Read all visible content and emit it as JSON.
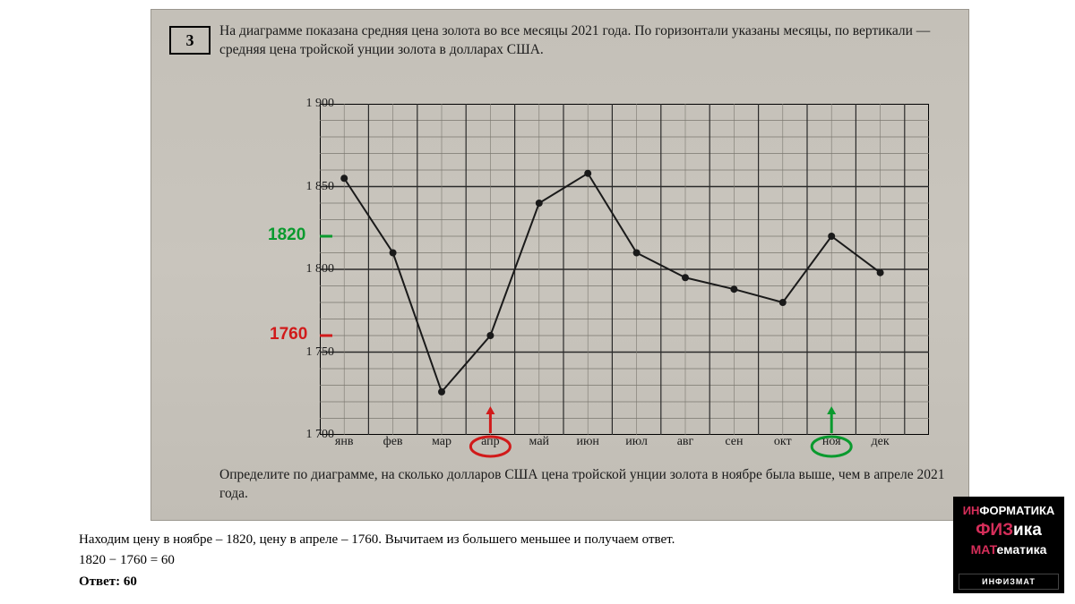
{
  "task_number": "3",
  "task_text": "На диаграмме показана средняя цена золота во все месяцы 2021 года. По горизонтали указаны месяцы, по вертикали — средняя цена тройской унции золота в долларах США.",
  "question_text": "Определите по диаграмме, на сколько долларов США цена тройской унции золота в ноябре была выше, чем в апреле 2021 года.",
  "chart": {
    "type": "line",
    "ylim": [
      1700,
      1900
    ],
    "ytick_step": 50,
    "ytick_labels": [
      "1 700",
      "1 750",
      "1 800",
      "1 850",
      "1 900"
    ],
    "ytick_values": [
      1700,
      1750,
      1800,
      1850,
      1900
    ],
    "y_minor_step": 10,
    "x_labels": [
      "янв",
      "фев",
      "мар",
      "апр",
      "май",
      "июн",
      "июл",
      "авг",
      "сен",
      "окт",
      "ноя",
      "дек"
    ],
    "values": [
      1855,
      1810,
      1726,
      1760,
      1840,
      1858,
      1810,
      1795,
      1788,
      1780,
      1820,
      1798
    ],
    "line_color": "#1a1a1a",
    "line_width": 2,
    "marker_radius": 4,
    "marker_color": "#1a1a1a",
    "grid_major_color": "#2a2a2a",
    "grid_minor_color": "#7a776f",
    "background_color": "transparent",
    "axis_color": "#000000",
    "x_major_between": true
  },
  "annotations": {
    "apr_label": "апр",
    "nov_label": "ноя",
    "apr_value_label": "1760",
    "nov_value_label": "1820",
    "apr_color": "#d11a1a",
    "nov_color": "#0a9a2e"
  },
  "solution": {
    "line1": "Находим цену в ноябре – 1820, цену в апреле – 1760. Вычитаем из большего меньшее и получаем ответ.",
    "calc": "1820 − 1760 = 60",
    "answer_label": "Ответ: 60"
  },
  "logo": {
    "line1_a": "ИН",
    "line1_b": "ФОРМАТИКА",
    "line2_a": "ФИЗ",
    "line2_b": "ика",
    "line3_a": "МАТ",
    "line3_b": "ематика",
    "bar": "ИНФИЗМАТ"
  }
}
